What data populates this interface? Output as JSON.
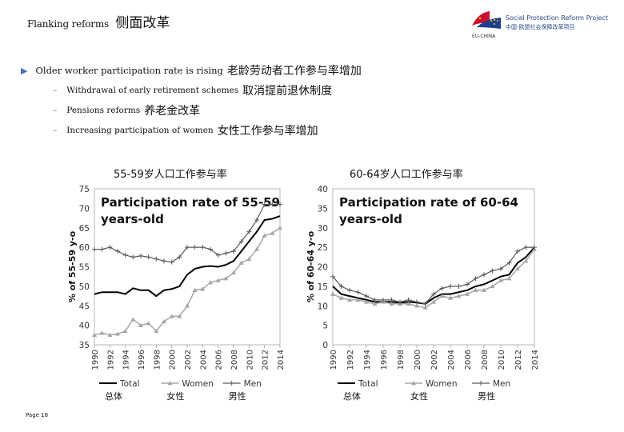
{
  "title": {
    "en": "Flanking reforms",
    "zh": "侧面改革"
  },
  "logo": {
    "line1": "Social Protection Reform Project",
    "line2": "中国-欧盟社会保障改革项目",
    "line3": "EU-CHINA"
  },
  "bullets": {
    "main": {
      "en": "Older worker participation rate is rising",
      "zh": "老龄劳动者工作参与率增加"
    },
    "subs": [
      {
        "en": "Withdrawal of early retirement schemes",
        "zh": "取消提前退休制度"
      },
      {
        "en": "Pensions reforms",
        "zh": "养老金改革"
      },
      {
        "en": "Increasing participation of women",
        "zh": "女性工作参与率增加"
      }
    ]
  },
  "footer": "Page 18",
  "colors": {
    "total": "#000000",
    "women": "#a6a6a6",
    "men": "#595959",
    "bullet": "#4a6fb5"
  },
  "chart_data": [
    {
      "type": "line",
      "heading": "55-59岁人口工作参与率",
      "title": "Participation rate of 55-59 years-old",
      "ylabel": "% of 55-59 y-o",
      "xlabel": "",
      "ylim": [
        35,
        75
      ],
      "yticks": [
        35,
        40,
        45,
        50,
        55,
        60,
        65,
        70,
        75
      ],
      "xticks": [
        "1990",
        "1992",
        "1994",
        "1996",
        "1998",
        "2000",
        "2002",
        "2004",
        "2006",
        "2008",
        "2010",
        "2012",
        "2014"
      ],
      "x": [
        1990,
        1991,
        1992,
        1993,
        1994,
        1995,
        1996,
        1997,
        1998,
        1999,
        2000,
        2001,
        2002,
        2003,
        2004,
        2005,
        2006,
        2007,
        2008,
        2009,
        2010,
        2011,
        2012,
        2013,
        2014
      ],
      "series": [
        {
          "name": "Total",
          "values": [
            48,
            48.5,
            48.5,
            48.5,
            48,
            49.5,
            49,
            49,
            47.5,
            49,
            49.3,
            50,
            53,
            54.5,
            55,
            55.2,
            55,
            55.5,
            56.5,
            59,
            61.5,
            64,
            67,
            67.3,
            68
          ]
        },
        {
          "name": "Women",
          "values": [
            37.5,
            38,
            37.5,
            37.8,
            38.5,
            41.5,
            40,
            40.5,
            38.5,
            41,
            42.3,
            42.3,
            45,
            49,
            49.3,
            51,
            51.5,
            52,
            53.5,
            56,
            57,
            59.5,
            63,
            63.6,
            65
          ]
        },
        {
          "name": "Men",
          "values": [
            59.5,
            59.5,
            60,
            59,
            58,
            57.5,
            57.8,
            57.5,
            57,
            56.5,
            56.2,
            57.5,
            60,
            60,
            60,
            59.5,
            58,
            58.5,
            59,
            61.5,
            64,
            67,
            71,
            71,
            71
          ]
        }
      ],
      "legend": [
        "Total",
        "Women",
        "Men"
      ],
      "legend_zh": [
        "总体",
        "女性",
        "男性"
      ]
    },
    {
      "type": "line",
      "heading": "60-64岁人口工作参与率",
      "title": "Participation rate of 60-64 years-old",
      "ylabel": "% of 60-64 y-o",
      "xlabel": "",
      "ylim": [
        0,
        40
      ],
      "yticks": [
        0,
        5,
        10,
        15,
        20,
        25,
        30,
        35,
        40
      ],
      "xticks": [
        "1990",
        "1992",
        "1994",
        "1996",
        "1998",
        "2000",
        "2002",
        "2004",
        "2006",
        "2008",
        "2010",
        "2012",
        "2014"
      ],
      "x": [
        1990,
        1991,
        1992,
        1993,
        1994,
        1995,
        1996,
        1997,
        1998,
        1999,
        2000,
        2001,
        2002,
        2003,
        2004,
        2005,
        2006,
        2007,
        2008,
        2009,
        2010,
        2011,
        2012,
        2013,
        2014
      ],
      "series": [
        {
          "name": "Total",
          "values": [
            15,
            13,
            12.5,
            12,
            11.5,
            11,
            11,
            11,
            10.8,
            11,
            10.8,
            10.5,
            12,
            13,
            13,
            13.5,
            14,
            15,
            15.5,
            16.5,
            17.5,
            18,
            21,
            22.5,
            25
          ]
        },
        {
          "name": "Women",
          "values": [
            13,
            12,
            11.5,
            11.5,
            11,
            10.5,
            11,
            10.5,
            10.5,
            10.5,
            10,
            9.5,
            11,
            12.5,
            12,
            12.5,
            13,
            14,
            14,
            15,
            16.5,
            17,
            19.5,
            21.5,
            24.5
          ]
        },
        {
          "name": "Men",
          "values": [
            17.5,
            15,
            14,
            13.5,
            12.5,
            11.5,
            11.5,
            11.5,
            11,
            11.5,
            11,
            10.5,
            13,
            14.5,
            15,
            15,
            15.5,
            17,
            18,
            19,
            19.5,
            21,
            24,
            25,
            25
          ]
        }
      ],
      "legend": [
        "Total",
        "Women",
        "Men"
      ],
      "legend_zh": [
        "总体",
        "女性",
        "男性"
      ]
    }
  ]
}
